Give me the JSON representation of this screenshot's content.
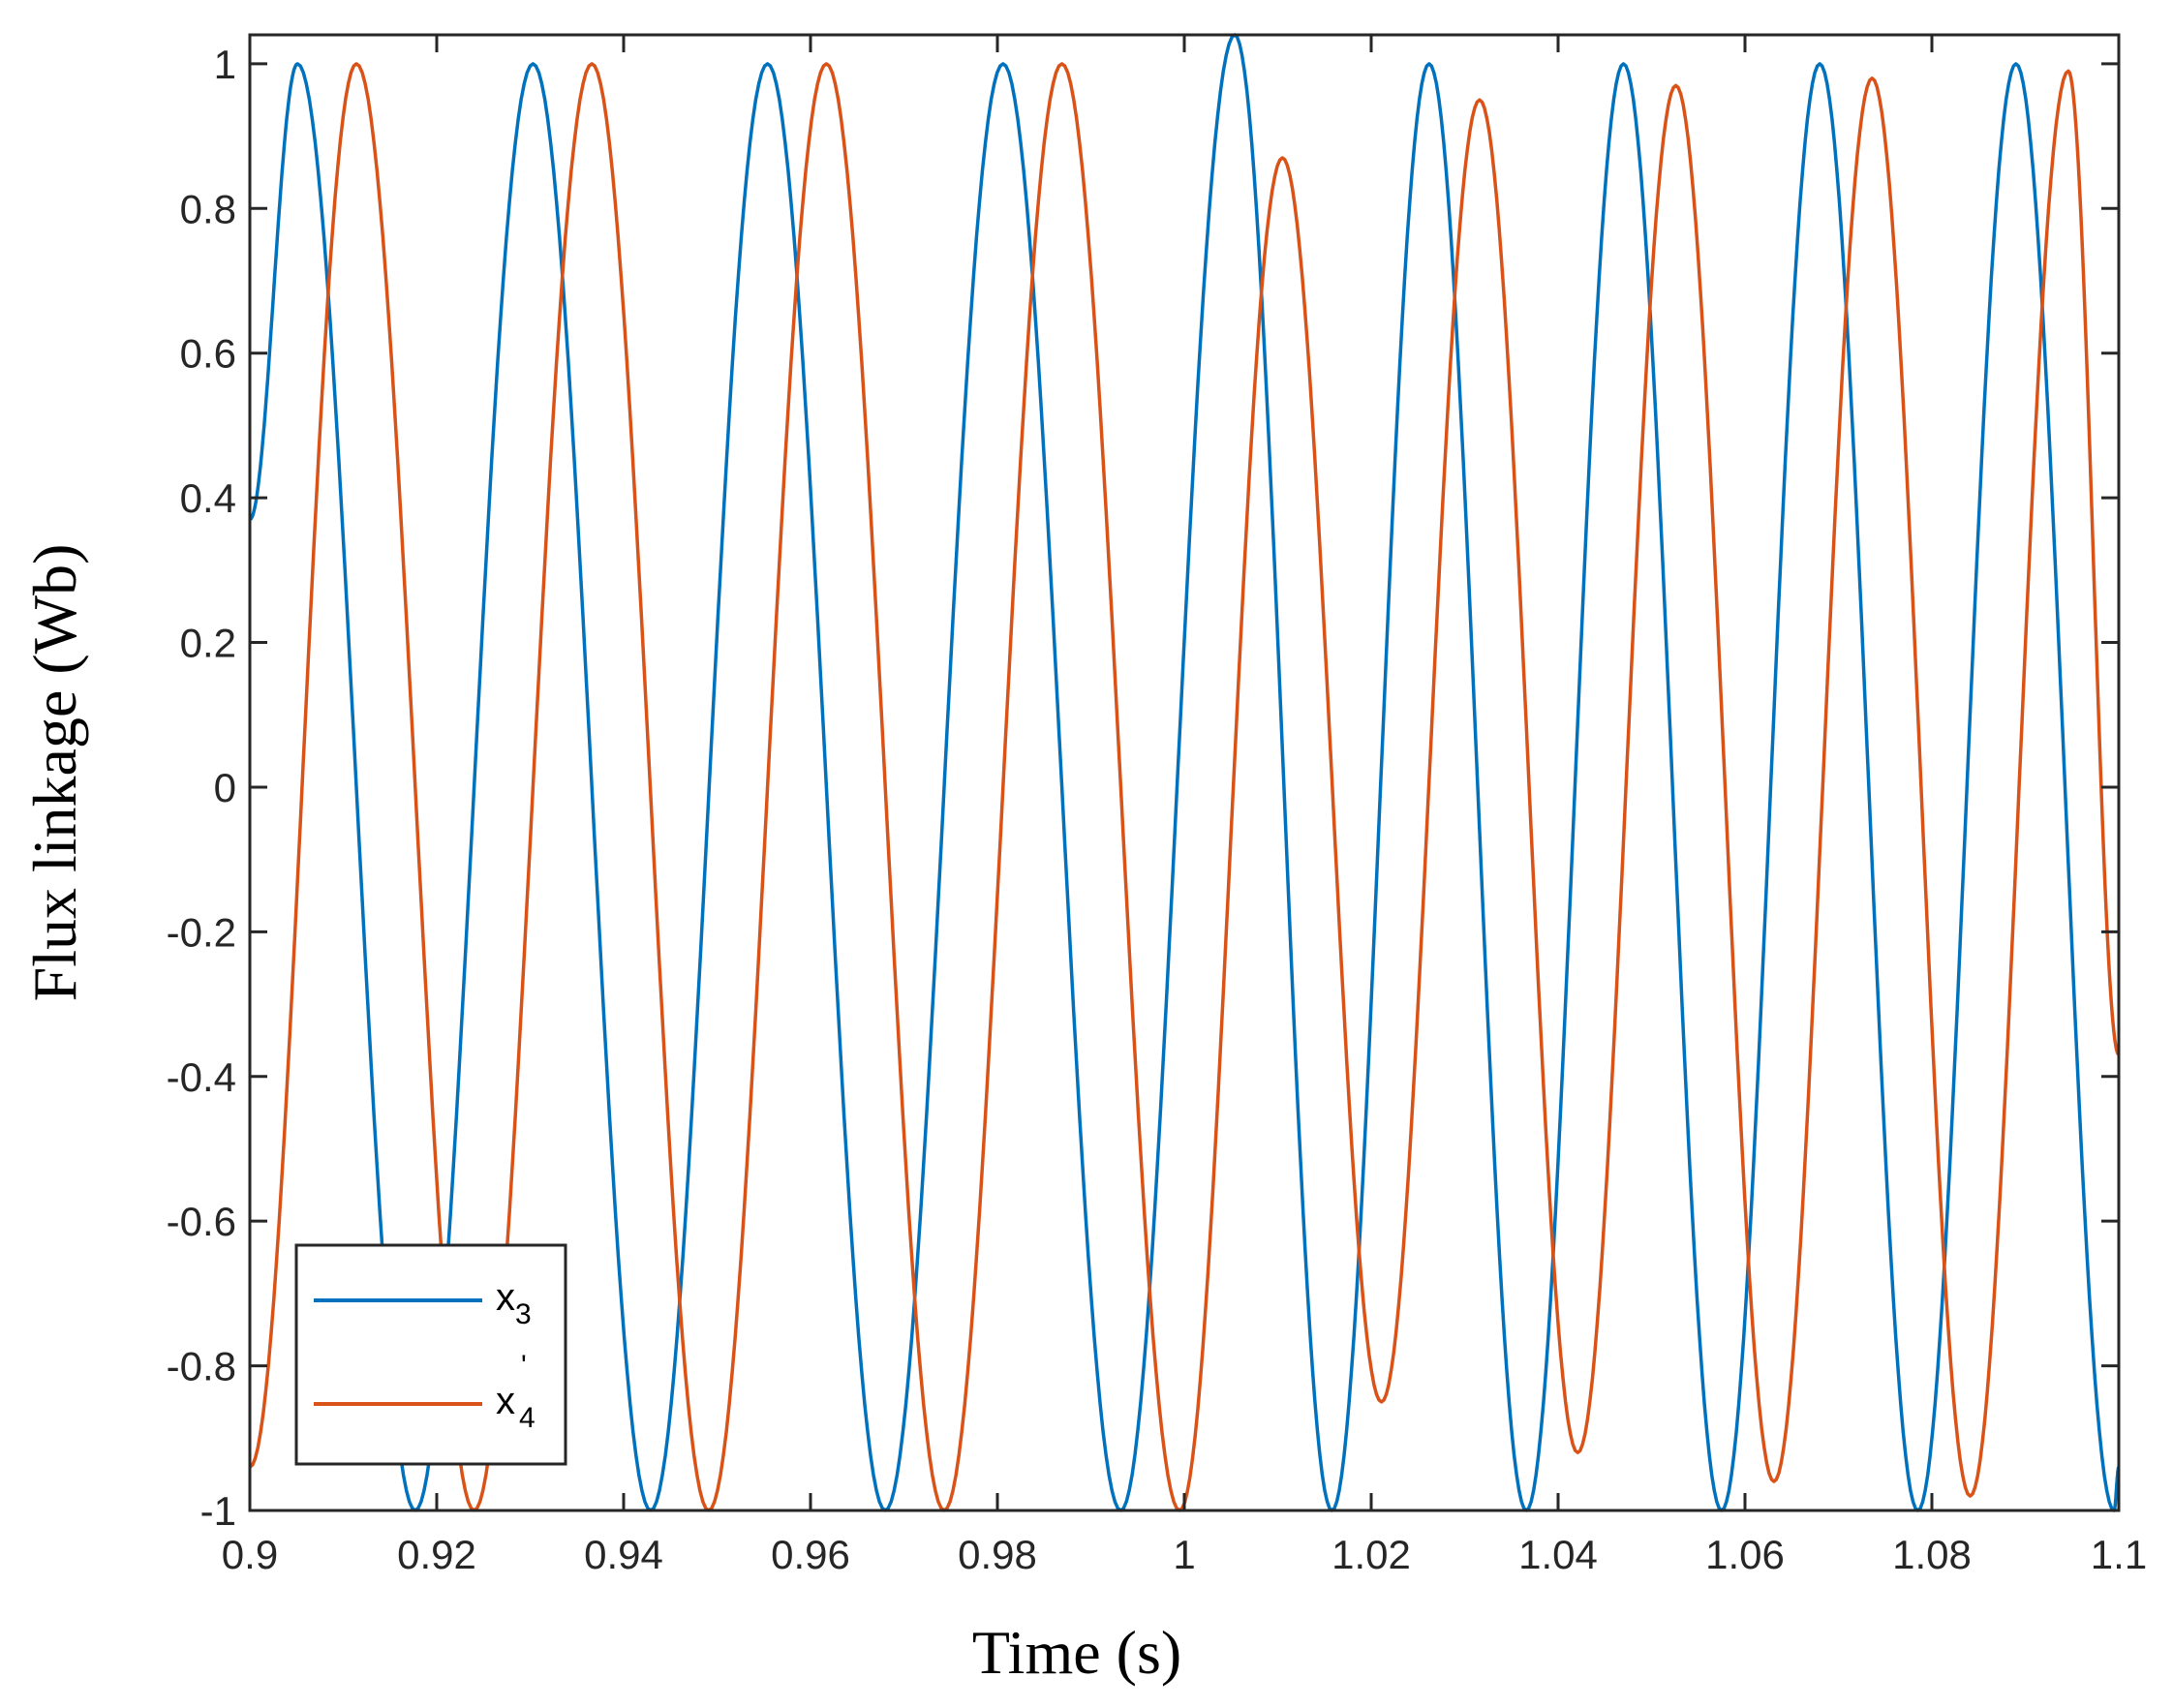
{
  "chart_data": {
    "type": "line",
    "title": "",
    "xlabel": "Time (s)",
    "ylabel": "Flux linkage (Wb)",
    "xlim": [
      0.9,
      1.1
    ],
    "ylim": [
      -1,
      1.04
    ],
    "xticks": [
      0.9,
      0.92,
      0.94,
      0.96,
      0.98,
      1,
      1.02,
      1.04,
      1.06,
      1.08,
      1.1
    ],
    "xtick_labels": [
      "0.9",
      "0.92",
      "0.94",
      "0.96",
      "0.98",
      "1",
      "1.02",
      "1.04",
      "1.06",
      "1.08",
      "1.1"
    ],
    "yticks": [
      -1,
      -0.8,
      -0.6,
      -0.4,
      -0.2,
      0,
      0.2,
      0.4,
      0.6,
      0.8,
      1
    ],
    "ytick_labels": [
      "-1",
      "-0.8",
      "-0.6",
      "-0.4",
      "-0.2",
      "0",
      "0.2",
      "0.4",
      "0.6",
      "0.8",
      "1"
    ],
    "grid": false,
    "legend_position": "bottom-left",
    "legend": [
      {
        "base": "x",
        "sub": "3",
        "sup": ""
      },
      {
        "base": "x",
        "sub": "4",
        "sup": "'"
      }
    ],
    "series": [
      {
        "legend_index": 0,
        "color": "#0072BD",
        "points": [
          [
            0.9,
            0.37
          ],
          [
            0.9051,
            1.0
          ],
          [
            0.9177,
            -1.0
          ],
          [
            0.9303,
            1.0
          ],
          [
            0.9429,
            -1.0
          ],
          [
            0.9554,
            1.0
          ],
          [
            0.968,
            -1.0
          ],
          [
            0.9806,
            1.0
          ],
          [
            0.9932,
            -1.0
          ],
          [
            1.0054,
            1.04
          ],
          [
            1.0158,
            -1.0
          ],
          [
            1.0262,
            1.0
          ],
          [
            1.0366,
            -1.0
          ],
          [
            1.047,
            1.0
          ],
          [
            1.0575,
            -1.0
          ],
          [
            1.068,
            1.0
          ],
          [
            1.0785,
            -1.0
          ],
          [
            1.089,
            1.0
          ],
          [
            1.0995,
            -1.0
          ],
          [
            1.1,
            -0.94
          ]
        ]
      },
      {
        "legend_index": 1,
        "color": "#D95319",
        "points": [
          [
            0.9,
            -0.94
          ],
          [
            0.9114,
            1.0
          ],
          [
            0.924,
            -1.0
          ],
          [
            0.9366,
            1.0
          ],
          [
            0.9491,
            -1.0
          ],
          [
            0.9617,
            1.0
          ],
          [
            0.9743,
            -1.0
          ],
          [
            0.9869,
            1.0
          ],
          [
            0.9995,
            -1.0
          ],
          [
            1.0105,
            0.87
          ],
          [
            1.0211,
            -0.85
          ],
          [
            1.0316,
            0.95
          ],
          [
            1.0421,
            -0.92
          ],
          [
            1.0526,
            0.97
          ],
          [
            1.0631,
            -0.96
          ],
          [
            1.0736,
            0.98
          ],
          [
            1.0841,
            -0.98
          ],
          [
            1.0946,
            0.99
          ],
          [
            1.1,
            -0.37
          ]
        ]
      }
    ]
  }
}
